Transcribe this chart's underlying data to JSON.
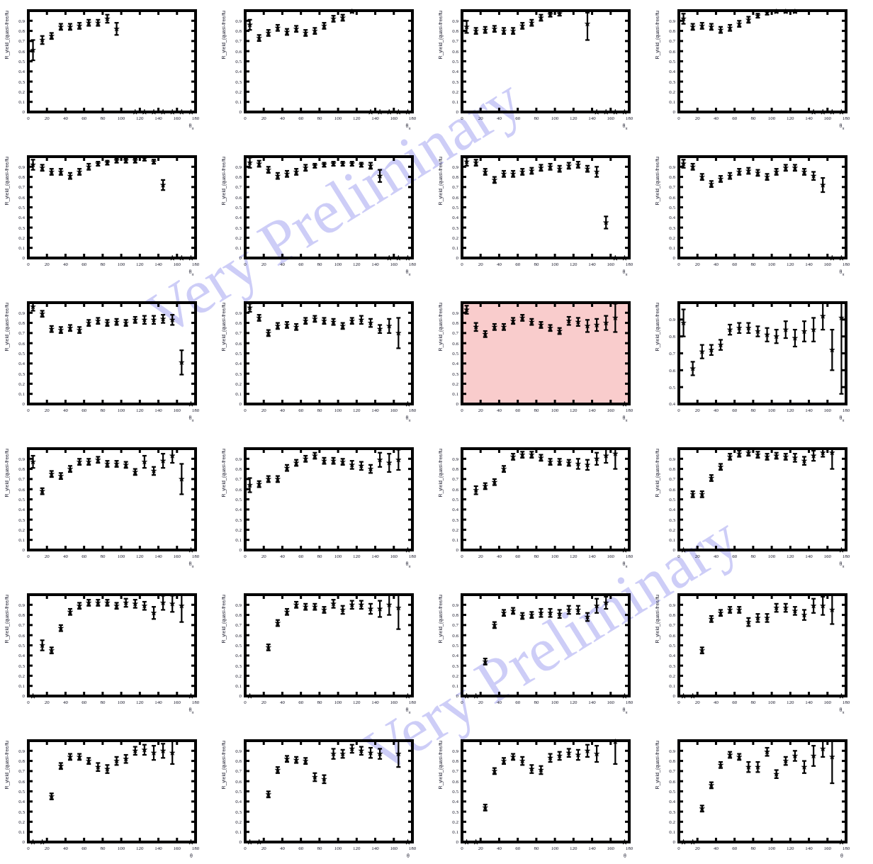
{
  "chart_data": [
    {
      "type": "scatter",
      "xlabel": "θ$_{π}$",
      "ylabel": "R_yield_(quasi-free/fu",
      "x": [
        5,
        15,
        25,
        35,
        45,
        55,
        65,
        75,
        85,
        95,
        115,
        125,
        135,
        145,
        155,
        165,
        175
      ],
      "values": [
        0.61,
        0.71,
        0.75,
        0.84,
        0.84,
        0.85,
        0.88,
        0.88,
        0.92,
        0.82,
        0,
        0,
        0,
        0,
        0,
        0,
        0
      ],
      "errors": [
        0.1,
        0.04,
        0.03,
        0.03,
        0.03,
        0.03,
        0.03,
        0.03,
        0.04,
        0.06,
        null,
        null,
        null,
        null,
        null,
        null,
        null
      ],
      "xlim": [
        0,
        180
      ],
      "xticks": [
        0,
        20,
        40,
        60,
        80,
        100,
        120,
        140,
        160,
        180
      ],
      "ylim": [
        0,
        1
      ],
      "yticks": [
        0,
        0.1,
        0.2,
        0.3,
        0.4,
        0.5,
        0.6,
        0.7,
        0.8,
        0.9
      ],
      "marker": "star"
    },
    {
      "type": "scatter",
      "xlabel": "θ$_{π}$",
      "ylabel": "R_yield_(quasi-free/fu",
      "x": [
        5,
        15,
        25,
        35,
        45,
        55,
        65,
        75,
        85,
        95,
        105,
        115,
        135,
        145,
        155,
        165,
        175
      ],
      "values": [
        0.86,
        0.73,
        0.78,
        0.83,
        0.79,
        0.82,
        0.78,
        0.8,
        0.85,
        0.92,
        0.93,
        0.99,
        0,
        0,
        0,
        0,
        0
      ],
      "errors": [
        0.05,
        0.03,
        0.03,
        0.03,
        0.03,
        0.03,
        0.03,
        0.03,
        0.03,
        0.03,
        0.03,
        0.01,
        null,
        null,
        null,
        null,
        null
      ],
      "xlim": [
        0,
        180
      ],
      "xticks": [
        0,
        20,
        40,
        60,
        80,
        100,
        120,
        140,
        160,
        180
      ],
      "ylim": [
        0,
        1
      ],
      "yticks": [
        0,
        0.1,
        0.2,
        0.3,
        0.4,
        0.5,
        0.6,
        0.7,
        0.8,
        0.9
      ],
      "marker": "star"
    },
    {
      "type": "scatter",
      "xlabel": "θ$_{π}$",
      "ylabel": "R_yield_(quasi-free/fu",
      "x": [
        5,
        15,
        25,
        35,
        45,
        55,
        65,
        75,
        85,
        95,
        105,
        135,
        145,
        155,
        165,
        175
      ],
      "values": [
        0.84,
        0.8,
        0.81,
        0.82,
        0.8,
        0.8,
        0.85,
        0.88,
        0.93,
        0.96,
        0.97,
        0.87,
        0,
        0,
        0,
        0
      ],
      "errors": [
        0.06,
        0.03,
        0.03,
        0.03,
        0.03,
        0.03,
        0.03,
        0.03,
        0.03,
        0.02,
        0.02,
        [
          0.71,
          0.98
        ],
        null,
        null,
        null,
        null
      ],
      "xlim": [
        0,
        180
      ],
      "xticks": [
        0,
        20,
        40,
        60,
        80,
        100,
        120,
        140,
        160,
        180
      ],
      "ylim": [
        0,
        1
      ],
      "yticks": [
        0,
        0.1,
        0.2,
        0.3,
        0.4,
        0.5,
        0.6,
        0.7,
        0.8,
        0.9
      ],
      "marker": "star"
    },
    {
      "type": "scatter",
      "xlabel": "θ$_{π}$",
      "ylabel": "R_yield_(quasi-free/fu",
      "x": [
        5,
        15,
        25,
        35,
        45,
        55,
        65,
        75,
        85,
        95,
        105,
        115,
        125,
        145,
        155,
        165,
        175
      ],
      "values": [
        0.92,
        0.84,
        0.85,
        0.84,
        0.81,
        0.83,
        0.87,
        0.91,
        0.95,
        0.98,
        0.99,
        0.99,
        0.99,
        0,
        0,
        0,
        0
      ],
      "errors": [
        0.05,
        0.03,
        0.03,
        0.03,
        0.03,
        0.03,
        0.03,
        0.03,
        0.02,
        0.02,
        0.01,
        0.01,
        0.01,
        null,
        null,
        null,
        null
      ],
      "xlim": [
        0,
        180
      ],
      "xticks": [
        0,
        20,
        40,
        60,
        80,
        100,
        120,
        140,
        160,
        180
      ],
      "ylim": [
        0,
        1
      ],
      "yticks": [
        0,
        0.1,
        0.2,
        0.3,
        0.4,
        0.5,
        0.6,
        0.7,
        0.8,
        0.9
      ],
      "marker": "star"
    },
    {
      "type": "scatter",
      "xlabel": "θ$_{π}$",
      "ylabel": "R_yield_(quasi-free/fu",
      "x": [
        5,
        15,
        25,
        35,
        45,
        55,
        65,
        75,
        85,
        95,
        105,
        115,
        125,
        135,
        145,
        155,
        165,
        175
      ],
      "values": [
        0.92,
        0.89,
        0.85,
        0.85,
        0.81,
        0.85,
        0.9,
        0.93,
        0.94,
        0.96,
        0.96,
        0.96,
        0.98,
        0.95,
        0.72,
        0,
        0,
        0
      ],
      "errors": [
        0.05,
        0.03,
        0.03,
        0.03,
        0.03,
        0.03,
        0.03,
        0.02,
        0.02,
        0.02,
        0.02,
        0.02,
        0.02,
        0.02,
        0.05,
        null,
        null,
        null
      ],
      "xlim": [
        0,
        180
      ],
      "xticks": [
        0,
        20,
        40,
        60,
        80,
        100,
        120,
        140,
        160,
        180
      ],
      "ylim": [
        0,
        1
      ],
      "yticks": [
        0,
        0.1,
        0.2,
        0.3,
        0.4,
        0.5,
        0.6,
        0.7,
        0.8,
        0.9
      ],
      "marker": "star"
    },
    {
      "type": "scatter",
      "xlabel": "θ$_{π}$",
      "ylabel": "R_yield_(quasi-free/fu",
      "x": [
        5,
        15,
        25,
        35,
        45,
        55,
        65,
        75,
        85,
        95,
        105,
        115,
        125,
        135,
        145,
        155,
        165,
        175
      ],
      "values": [
        0.94,
        0.93,
        0.87,
        0.81,
        0.83,
        0.85,
        0.89,
        0.91,
        0.92,
        0.93,
        0.93,
        0.93,
        0.92,
        0.91,
        0.81,
        0,
        0,
        0
      ],
      "errors": [
        0.05,
        0.03,
        0.03,
        0.03,
        0.03,
        0.03,
        0.03,
        0.02,
        0.02,
        0.02,
        0.02,
        0.02,
        0.02,
        0.03,
        0.06,
        null,
        null,
        null
      ],
      "xlim": [
        0,
        180
      ],
      "xticks": [
        0,
        20,
        40,
        60,
        80,
        100,
        120,
        140,
        160,
        180
      ],
      "ylim": [
        0,
        1
      ],
      "yticks": [
        0,
        0.1,
        0.2,
        0.3,
        0.4,
        0.5,
        0.6,
        0.7,
        0.8,
        0.9
      ],
      "marker": "star",
      "annotations": [
        "Very Preliminary"
      ]
    },
    {
      "type": "scatter",
      "xlabel": "θ$_{π}$",
      "ylabel": "R_yield_(quasi-free/fu",
      "x": [
        5,
        15,
        25,
        35,
        45,
        55,
        65,
        75,
        85,
        95,
        105,
        115,
        125,
        135,
        145,
        155,
        165,
        175
      ],
      "values": [
        0.95,
        0.94,
        0.85,
        0.77,
        0.83,
        0.83,
        0.85,
        0.86,
        0.89,
        0.9,
        0.88,
        0.91,
        0.92,
        0.88,
        0.85,
        0.35,
        0,
        0
      ],
      "errors": [
        0.04,
        0.03,
        0.03,
        0.03,
        0.03,
        0.03,
        0.03,
        0.03,
        0.03,
        0.03,
        0.03,
        0.03,
        0.03,
        0.03,
        0.05,
        0.06,
        null,
        null
      ],
      "xlim": [
        0,
        180
      ],
      "xticks": [
        0,
        20,
        40,
        60,
        80,
        100,
        120,
        140,
        160,
        180
      ],
      "ylim": [
        0,
        1
      ],
      "yticks": [
        0,
        0.1,
        0.2,
        0.3,
        0.4,
        0.5,
        0.6,
        0.7,
        0.8,
        0.9
      ],
      "marker": "star"
    },
    {
      "type": "scatter",
      "xlabel": "θ$_{π}$",
      "ylabel": "R_yield_(quasi-free/fu",
      "x": [
        5,
        15,
        25,
        35,
        45,
        55,
        65,
        75,
        85,
        95,
        105,
        115,
        125,
        135,
        145,
        155,
        165,
        175
      ],
      "values": [
        0.93,
        0.9,
        0.8,
        0.73,
        0.78,
        0.81,
        0.85,
        0.86,
        0.84,
        0.8,
        0.85,
        0.89,
        0.89,
        0.85,
        0.81,
        0.72,
        0,
        0
      ],
      "errors": [
        0.04,
        0.03,
        0.03,
        0.03,
        0.03,
        0.03,
        0.03,
        0.03,
        0.03,
        0.03,
        0.03,
        0.03,
        0.03,
        0.03,
        0.04,
        0.07,
        null,
        null
      ],
      "xlim": [
        0,
        180
      ],
      "xticks": [
        0,
        20,
        40,
        60,
        80,
        100,
        120,
        140,
        160,
        180
      ],
      "ylim": [
        0,
        1
      ],
      "yticks": [
        0,
        0.1,
        0.2,
        0.3,
        0.4,
        0.5,
        0.6,
        0.7,
        0.8,
        0.9
      ],
      "marker": "star"
    },
    {
      "type": "scatter",
      "xlabel": "θ$_{π}$",
      "ylabel": "R_yield_(quasi-free/fu",
      "x": [
        5,
        15,
        25,
        35,
        45,
        55,
        65,
        75,
        85,
        95,
        105,
        115,
        125,
        135,
        145,
        155,
        165,
        175
      ],
      "values": [
        0.96,
        0.89,
        0.74,
        0.73,
        0.75,
        0.73,
        0.8,
        0.82,
        0.8,
        0.81,
        0.8,
        0.83,
        0.83,
        0.83,
        0.84,
        0.83,
        0.41,
        0
      ],
      "errors": [
        0.04,
        0.03,
        0.03,
        0.03,
        0.03,
        0.03,
        0.03,
        0.03,
        0.03,
        0.03,
        0.03,
        0.03,
        0.04,
        0.04,
        0.04,
        0.05,
        0.12,
        null
      ],
      "xlim": [
        0,
        180
      ],
      "xticks": [
        0,
        20,
        40,
        60,
        80,
        100,
        120,
        140,
        160,
        180
      ],
      "ylim": [
        0,
        1
      ],
      "yticks": [
        0,
        0.1,
        0.2,
        0.3,
        0.4,
        0.5,
        0.6,
        0.7,
        0.8,
        0.9
      ],
      "marker": "star"
    },
    {
      "type": "scatter",
      "xlabel": "θ$_{π}$",
      "ylabel": "R_yield_(quasi-free/fu",
      "x": [
        5,
        15,
        25,
        35,
        45,
        55,
        65,
        75,
        85,
        95,
        105,
        115,
        125,
        135,
        145,
        155,
        165,
        175
      ],
      "values": [
        0.95,
        0.85,
        0.7,
        0.77,
        0.78,
        0.76,
        0.82,
        0.84,
        0.82,
        0.81,
        0.77,
        0.82,
        0.83,
        0.8,
        0.74,
        0.77,
        0.7,
        0
      ],
      "errors": [
        0.04,
        0.03,
        0.03,
        0.03,
        0.03,
        0.03,
        0.03,
        0.03,
        0.03,
        0.03,
        0.03,
        0.03,
        0.04,
        0.04,
        0.04,
        0.07,
        0.15,
        null
      ],
      "xlim": [
        0,
        180
      ],
      "xticks": [
        0,
        20,
        40,
        60,
        80,
        100,
        120,
        140,
        160,
        180
      ],
      "ylim": [
        0,
        1
      ],
      "yticks": [
        0,
        0.1,
        0.2,
        0.3,
        0.4,
        0.5,
        0.6,
        0.7,
        0.8,
        0.9
      ],
      "marker": "star"
    },
    {
      "type": "scatter",
      "xlabel": "θ$_{π}$",
      "ylabel": "R_yield_(quasi-free/fu",
      "x": [
        5,
        15,
        25,
        35,
        45,
        55,
        65,
        75,
        85,
        95,
        105,
        115,
        125,
        135,
        145,
        155,
        165,
        175
      ],
      "values": [
        0.93,
        0.76,
        0.69,
        0.76,
        0.76,
        0.82,
        0.85,
        0.81,
        0.78,
        0.75,
        0.72,
        0.82,
        0.81,
        0.77,
        0.78,
        0.8,
        0.85,
        0
      ],
      "errors": [
        0.04,
        0.04,
        0.03,
        0.03,
        0.03,
        0.03,
        0.03,
        0.03,
        0.03,
        0.03,
        0.03,
        0.04,
        0.04,
        0.06,
        0.06,
        0.07,
        0.14,
        null
      ],
      "xlim": [
        0,
        180
      ],
      "xticks": [
        0,
        20,
        40,
        60,
        80,
        100,
        120,
        140,
        160,
        180
      ],
      "ylim": [
        0,
        1
      ],
      "yticks": [
        0,
        0.1,
        0.2,
        0.3,
        0.4,
        0.5,
        0.6,
        0.7,
        0.8,
        0.9
      ],
      "marker": "star",
      "bands": [
        {
          "axis": "y",
          "from": 0,
          "to": 1,
          "color": "#f9cccc"
        }
      ]
    },
    {
      "type": "scatter",
      "xlabel": "θ$_{π}$",
      "ylabel": "R_yield_(quasi-free/fu",
      "x": [
        5,
        15,
        25,
        35,
        45,
        55,
        65,
        75,
        85,
        95,
        105,
        115,
        125,
        135,
        145,
        155,
        165,
        175
      ],
      "values": [
        0.88,
        0.61,
        0.71,
        0.72,
        0.75,
        0.84,
        0.85,
        0.85,
        0.83,
        0.81,
        0.8,
        0.84,
        0.79,
        0.83,
        0.84,
        0.92,
        0.72,
        0.91
      ],
      "errors": [
        0.08,
        0.04,
        0.04,
        0.03,
        0.03,
        0.03,
        0.03,
        0.03,
        0.03,
        0.04,
        0.04,
        0.05,
        0.05,
        0.06,
        0.07,
        0.08,
        0.12,
        [
          0.46,
          1
        ]
      ],
      "xlim": [
        0,
        180
      ],
      "xticks": [
        0,
        20,
        40,
        60,
        80,
        100,
        120,
        140,
        160,
        180
      ],
      "ylim": [
        0.4,
        1
      ],
      "yticks": [
        0.4,
        0.5,
        0.6,
        0.7,
        0.8,
        0.9
      ],
      "marker": "star"
    },
    {
      "type": "scatter",
      "xlabel": "θ$_{π}$",
      "ylabel": "R_yield_(quasi-free/fu",
      "x": [
        5,
        15,
        25,
        35,
        45,
        55,
        65,
        75,
        85,
        95,
        105,
        115,
        125,
        135,
        145,
        155,
        165,
        175
      ],
      "values": [
        0.87,
        0.58,
        0.75,
        0.73,
        0.8,
        0.87,
        0.87,
        0.89,
        0.85,
        0.85,
        0.84,
        0.77,
        0.87,
        0.78,
        0.88,
        0.93,
        0.7,
        0
      ],
      "errors": [
        0.06,
        0.03,
        0.03,
        0.03,
        0.03,
        0.03,
        0.03,
        0.03,
        0.03,
        0.03,
        0.03,
        0.03,
        0.06,
        0.04,
        0.07,
        0.07,
        0.15,
        null
      ],
      "xlim": [
        0,
        180
      ],
      "xticks": [
        0,
        20,
        40,
        60,
        80,
        100,
        120,
        140,
        160,
        180
      ],
      "ylim": [
        0,
        1
      ],
      "yticks": [
        0,
        0.1,
        0.2,
        0.3,
        0.4,
        0.5,
        0.6,
        0.7,
        0.8,
        0.9
      ],
      "marker": "star"
    },
    {
      "type": "scatter",
      "xlabel": "θ$_{π}$",
      "ylabel": "R_yield_(quasi-free/fu",
      "x": [
        5,
        15,
        25,
        35,
        45,
        55,
        65,
        75,
        85,
        95,
        105,
        115,
        125,
        135,
        145,
        155,
        165,
        175
      ],
      "values": [
        0.64,
        0.65,
        0.7,
        0.7,
        0.81,
        0.86,
        0.9,
        0.93,
        0.88,
        0.88,
        0.87,
        0.84,
        0.83,
        0.8,
        0.89,
        0.86,
        0.89,
        0
      ],
      "errors": [
        0.07,
        0.03,
        0.03,
        0.03,
        0.03,
        0.03,
        0.03,
        0.03,
        0.03,
        0.03,
        0.03,
        0.04,
        0.04,
        0.04,
        0.07,
        0.09,
        0.1,
        null
      ],
      "xlim": [
        0,
        180
      ],
      "xticks": [
        0,
        20,
        40,
        60,
        80,
        100,
        120,
        140,
        160,
        180
      ],
      "ylim": [
        0,
        1
      ],
      "yticks": [
        0,
        0.1,
        0.2,
        0.3,
        0.4,
        0.5,
        0.6,
        0.7,
        0.8,
        0.9
      ],
      "marker": "star"
    },
    {
      "type": "scatter",
      "xlabel": "θ$_{π}$",
      "ylabel": "R_yield_(quasi-free/fu",
      "x": [
        15,
        25,
        35,
        45,
        55,
        65,
        75,
        85,
        95,
        105,
        115,
        125,
        135,
        145,
        155,
        165,
        175
      ],
      "values": [
        0.59,
        0.63,
        0.67,
        0.8,
        0.92,
        0.94,
        0.94,
        0.91,
        0.87,
        0.87,
        0.86,
        0.85,
        0.84,
        0.9,
        0.93,
        0.95,
        0
      ],
      "errors": [
        0.04,
        0.03,
        0.03,
        0.03,
        0.03,
        0.03,
        0.03,
        0.03,
        0.03,
        0.03,
        0.03,
        0.05,
        0.05,
        0.06,
        0.07,
        [
          0.8,
          1
        ],
        null
      ],
      "xlim": [
        0,
        180
      ],
      "xticks": [
        0,
        20,
        40,
        60,
        80,
        100,
        120,
        140,
        160,
        180
      ],
      "ylim": [
        0,
        1
      ],
      "yticks": [
        0,
        0.1,
        0.2,
        0.3,
        0.4,
        0.5,
        0.6,
        0.7,
        0.8,
        0.9
      ],
      "marker": "star"
    },
    {
      "type": "scatter",
      "xlabel": "θ$_{π}$",
      "ylabel": "R_yield_(quasi-free/fu",
      "x": [
        5,
        15,
        25,
        35,
        45,
        55,
        65,
        75,
        85,
        95,
        105,
        115,
        125,
        135,
        145,
        155,
        165,
        175
      ],
      "values": [
        0,
        0.55,
        0.55,
        0.71,
        0.82,
        0.92,
        0.95,
        0.96,
        0.94,
        0.92,
        0.93,
        0.92,
        0.91,
        0.88,
        0.93,
        0.96,
        0.96,
        0
      ],
      "errors": [
        null,
        0.03,
        0.03,
        0.03,
        0.03,
        0.03,
        0.03,
        0.03,
        0.03,
        0.03,
        0.03,
        0.03,
        0.04,
        0.04,
        0.05,
        0.04,
        [
          0.8,
          1
        ],
        null
      ],
      "xlim": [
        0,
        180
      ],
      "xticks": [
        0,
        20,
        40,
        60,
        80,
        100,
        120,
        140,
        160,
        180
      ],
      "ylim": [
        0,
        1
      ],
      "yticks": [
        0,
        0.1,
        0.2,
        0.3,
        0.4,
        0.5,
        0.6,
        0.7,
        0.8,
        0.9
      ],
      "marker": "star"
    },
    {
      "type": "scatter",
      "xlabel": "θ$_{π}$",
      "ylabel": "R_yield_(quasi-free/fu",
      "x": [
        5,
        15,
        25,
        35,
        45,
        55,
        65,
        75,
        85,
        95,
        105,
        115,
        125,
        135,
        145,
        155,
        165,
        175
      ],
      "values": [
        0,
        0.5,
        0.45,
        0.67,
        0.83,
        0.89,
        0.92,
        0.92,
        0.92,
        0.89,
        0.92,
        0.91,
        0.89,
        0.82,
        0.92,
        0.91,
        0.89,
        0
      ],
      "errors": [
        null,
        0.05,
        0.03,
        0.03,
        0.03,
        0.03,
        0.03,
        0.03,
        0.03,
        0.03,
        0.04,
        0.04,
        0.04,
        0.06,
        0.07,
        0.08,
        [
          0.73,
          1
        ],
        null
      ],
      "xlim": [
        0,
        180
      ],
      "xticks": [
        0,
        20,
        40,
        60,
        80,
        100,
        120,
        140,
        160,
        180
      ],
      "ylim": [
        0,
        1
      ],
      "yticks": [
        0,
        0.1,
        0.2,
        0.3,
        0.4,
        0.5,
        0.6,
        0.7,
        0.8,
        0.9
      ],
      "marker": "star"
    },
    {
      "type": "scatter",
      "xlabel": "θ$_{π}$",
      "ylabel": "R_yield_(quasi-free/fu",
      "x": [
        5,
        25,
        35,
        45,
        55,
        65,
        75,
        85,
        95,
        105,
        115,
        125,
        135,
        145,
        155,
        165,
        175
      ],
      "values": [
        0,
        0.48,
        0.72,
        0.83,
        0.9,
        0.88,
        0.88,
        0.85,
        0.91,
        0.85,
        0.9,
        0.9,
        0.86,
        0.86,
        0.9,
        0.87,
        0
      ],
      "errors": [
        null,
        0.03,
        0.03,
        0.03,
        0.03,
        0.03,
        0.03,
        0.03,
        0.04,
        0.04,
        0.04,
        0.04,
        0.05,
        0.08,
        0.1,
        [
          0.66,
          1
        ],
        null
      ],
      "xlim": [
        0,
        180
      ],
      "xticks": [
        0,
        20,
        40,
        60,
        80,
        100,
        120,
        140,
        160,
        180
      ],
      "ylim": [
        0,
        1
      ],
      "yticks": [
        0,
        0.1,
        0.2,
        0.3,
        0.4,
        0.5,
        0.6,
        0.7,
        0.8,
        0.9
      ],
      "marker": "star"
    },
    {
      "type": "scatter",
      "xlabel": "θ$_{π}$",
      "ylabel": "R_yield_(quasi-free/fu",
      "x": [
        5,
        15,
        25,
        35,
        45,
        55,
        65,
        75,
        85,
        95,
        105,
        115,
        125,
        135,
        145,
        155,
        175
      ],
      "values": [
        0,
        0,
        0.34,
        0.7,
        0.82,
        0.84,
        0.79,
        0.8,
        0.82,
        0.82,
        0.81,
        0.85,
        0.85,
        0.78,
        0.89,
        0.92,
        0
      ],
      "errors": [
        null,
        null,
        0.03,
        0.03,
        0.03,
        0.03,
        0.03,
        0.03,
        0.04,
        0.04,
        0.04,
        0.04,
        0.04,
        0.04,
        0.07,
        0.06,
        null
      ],
      "xlim": [
        0,
        180
      ],
      "xticks": [
        0,
        20,
        40,
        60,
        80,
        100,
        120,
        140,
        160,
        180
      ],
      "ylim": [
        0,
        1
      ],
      "yticks": [
        0,
        0.1,
        0.2,
        0.3,
        0.4,
        0.5,
        0.6,
        0.7,
        0.8,
        0.9
      ],
      "marker": "star",
      "annotations": [
        "Very Preliminary"
      ]
    },
    {
      "type": "scatter",
      "xlabel": "θ$_{π}$",
      "ylabel": "R_yield_(quasi-free/fu",
      "x": [
        5,
        15,
        25,
        35,
        45,
        55,
        65,
        75,
        85,
        95,
        105,
        115,
        125,
        135,
        145,
        155,
        165,
        175
      ],
      "values": [
        0,
        0,
        0.45,
        0.76,
        0.82,
        0.85,
        0.85,
        0.73,
        0.77,
        0.77,
        0.87,
        0.87,
        0.84,
        0.8,
        0.89,
        0.89,
        0.85,
        0
      ],
      "errors": [
        null,
        null,
        0.03,
        0.03,
        0.03,
        0.03,
        0.03,
        0.04,
        0.04,
        0.04,
        0.04,
        0.04,
        0.04,
        0.05,
        0.07,
        0.09,
        [
          0.71,
          1
        ],
        null
      ],
      "xlim": [
        0,
        180
      ],
      "xticks": [
        0,
        20,
        40,
        60,
        80,
        100,
        120,
        140,
        160,
        180
      ],
      "ylim": [
        0,
        1
      ],
      "yticks": [
        0,
        0.1,
        0.2,
        0.3,
        0.4,
        0.5,
        0.6,
        0.7,
        0.8,
        0.9
      ],
      "marker": "star"
    },
    {
      "type": "scatter",
      "xlabel": "θ",
      "ylabel": "R_yield_(quasi-free/fu",
      "x": [
        5,
        15,
        25,
        35,
        45,
        55,
        65,
        75,
        85,
        95,
        105,
        115,
        125,
        135,
        145,
        155,
        175
      ],
      "values": [
        0,
        0,
        0.45,
        0.75,
        0.84,
        0.84,
        0.8,
        0.74,
        0.72,
        0.8,
        0.82,
        0.9,
        0.91,
        0.88,
        0.9,
        0.88,
        0
      ],
      "errors": [
        null,
        null,
        0.03,
        0.03,
        0.03,
        0.03,
        0.03,
        0.04,
        0.04,
        0.04,
        0.04,
        0.04,
        0.05,
        0.07,
        0.07,
        [
          0.77,
          1
        ],
        null
      ],
      "xlim": [
        0,
        180
      ],
      "xticks": [
        0,
        20,
        40,
        60,
        80,
        100,
        120,
        140,
        160,
        180
      ],
      "ylim": [
        0,
        1
      ],
      "yticks": [
        0,
        0.1,
        0.2,
        0.3,
        0.4,
        0.5,
        0.6,
        0.7,
        0.8,
        0.9
      ],
      "marker": "star"
    },
    {
      "type": "scatter",
      "xlabel": "θ",
      "ylabel": "R_yield_(quasi-free/fu",
      "x": [
        5,
        15,
        25,
        35,
        45,
        55,
        65,
        75,
        85,
        95,
        105,
        115,
        125,
        135,
        145,
        165,
        175
      ],
      "values": [
        0,
        0,
        0.47,
        0.71,
        0.82,
        0.81,
        0.8,
        0.64,
        0.62,
        0.87,
        0.87,
        0.92,
        0.9,
        0.88,
        0.87,
        0.87,
        0
      ],
      "errors": [
        null,
        null,
        0.03,
        0.03,
        0.03,
        0.03,
        0.03,
        0.04,
        0.04,
        0.05,
        0.04,
        0.04,
        0.04,
        0.05,
        0.05,
        [
          0.74,
          1
        ],
        null
      ],
      "xlim": [
        0,
        180
      ],
      "xticks": [
        0,
        20,
        40,
        60,
        80,
        100,
        120,
        140,
        160,
        180
      ],
      "ylim": [
        0,
        1
      ],
      "yticks": [
        0,
        0.1,
        0.2,
        0.3,
        0.4,
        0.5,
        0.6,
        0.7,
        0.8,
        0.9
      ],
      "marker": "star"
    },
    {
      "type": "scatter",
      "xlabel": "θ",
      "ylabel": "R_yield_(quasi-free/fu",
      "x": [
        5,
        15,
        25,
        35,
        45,
        55,
        65,
        75,
        85,
        95,
        105,
        115,
        125,
        135,
        145,
        165,
        175
      ],
      "values": [
        0,
        0,
        0.34,
        0.7,
        0.8,
        0.84,
        0.8,
        0.72,
        0.71,
        0.83,
        0.85,
        0.88,
        0.86,
        0.9,
        0.87,
        0.99,
        0
      ],
      "errors": [
        null,
        null,
        0.03,
        0.03,
        0.03,
        0.03,
        0.04,
        0.04,
        0.04,
        0.04,
        0.04,
        0.04,
        0.05,
        0.06,
        0.08,
        [
          0.77,
          1
        ],
        null
      ],
      "xlim": [
        0,
        180
      ],
      "xticks": [
        0,
        20,
        40,
        60,
        80,
        100,
        120,
        140,
        160,
        180
      ],
      "ylim": [
        0,
        1
      ],
      "yticks": [
        0,
        0.1,
        0.2,
        0.3,
        0.4,
        0.5,
        0.6,
        0.7,
        0.8,
        0.9
      ],
      "marker": "star"
    },
    {
      "type": "scatter",
      "xlabel": "θ",
      "ylabel": "R_yield_(quasi-free/fu",
      "x": [
        5,
        15,
        25,
        35,
        45,
        55,
        65,
        75,
        85,
        95,
        105,
        115,
        125,
        135,
        145,
        155,
        165,
        175
      ],
      "values": [
        0,
        0,
        0.33,
        0.56,
        0.76,
        0.86,
        0.84,
        0.74,
        0.74,
        0.89,
        0.67,
        0.8,
        0.85,
        0.74,
        0.85,
        0.92,
        0.84,
        0
      ],
      "errors": [
        null,
        null,
        0.03,
        0.03,
        0.03,
        0.03,
        0.03,
        0.05,
        0.05,
        0.04,
        0.04,
        0.04,
        0.05,
        0.06,
        0.1,
        0.08,
        [
          0.58,
          1
        ],
        null
      ],
      "xlim": [
        0,
        180
      ],
      "xticks": [
        0,
        20,
        40,
        60,
        80,
        100,
        120,
        140,
        160,
        180
      ],
      "ylim": [
        0,
        1
      ],
      "yticks": [
        0,
        0.1,
        0.2,
        0.3,
        0.4,
        0.5,
        0.6,
        0.7,
        0.8,
        0.9
      ],
      "marker": "star"
    }
  ]
}
